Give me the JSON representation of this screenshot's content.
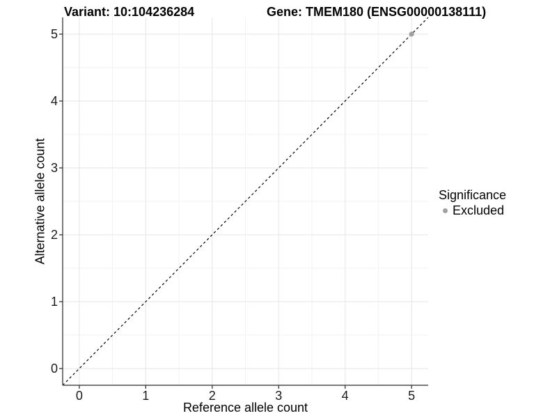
{
  "chart_data": {
    "type": "scatter",
    "title_left": "Variant: 10:104236284",
    "title_right": "Gene: TMEM180 (ENSG00000138111)",
    "xlabel": "Reference allele count",
    "ylabel": "Alternative allele count",
    "xlim": [
      -0.25,
      5.25
    ],
    "ylim": [
      -0.25,
      5.25
    ],
    "xticks": [
      0,
      1,
      2,
      3,
      4,
      5
    ],
    "yticks": [
      0,
      1,
      2,
      3,
      4,
      5
    ],
    "xminor": [
      0.5,
      1.5,
      2.5,
      3.5,
      4.5
    ],
    "yminor": [
      0.5,
      1.5,
      2.5,
      3.5,
      4.5
    ],
    "grid": "major+minor",
    "reference_line": {
      "slope": 1,
      "intercept": 0,
      "style": "dashed",
      "color": "#000000"
    },
    "series": [
      {
        "name": "Excluded",
        "color": "#a0a0a0",
        "points": [
          {
            "x": 5,
            "y": 5
          }
        ]
      }
    ],
    "legend": {
      "title": "Significance",
      "position": "right",
      "entries": [
        {
          "label": "Excluded",
          "color": "#a0a0a0",
          "marker": "circle"
        }
      ]
    }
  },
  "colors": {
    "grid_major": "#e4e4e4",
    "grid_minor": "#f2f2f2",
    "axis_line": "#4d4d4d",
    "tick_mark": "#333333",
    "excluded_point": "#a0a0a0"
  }
}
